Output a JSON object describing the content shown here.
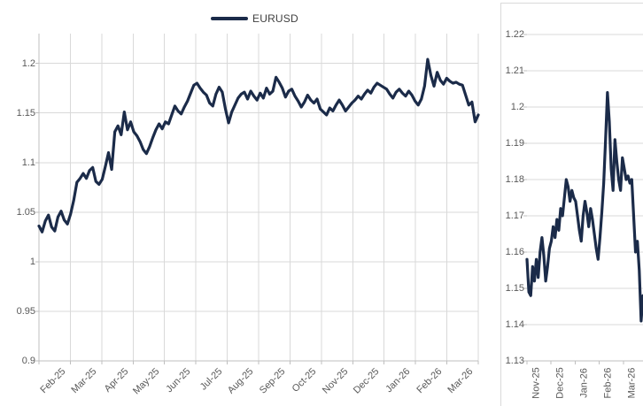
{
  "legend": {
    "label": "EURUSD"
  },
  "colors": {
    "line": "#1b2b49",
    "gridline": "#d9d9d9",
    "axis": "#bfbfbf",
    "tick_label": "#595959",
    "legend_text": "#3f3f3f",
    "frame_border": "#d9d9d9",
    "background": "#ffffff"
  },
  "chart_data": [
    {
      "name": "eurusd-full-history",
      "type": "line",
      "title": "",
      "legend_entries": [
        "EURUSD"
      ],
      "legend_position": "top",
      "grid": "horizontal-and-vertical",
      "x_tick_labels": [
        "Feb-25",
        "Mar-25",
        "Apr-25",
        "May-25",
        "Jun-25",
        "Jul-25",
        "Aug-25",
        "Sep-25",
        "Oct-25",
        "Nov-25",
        "Dec-25",
        "Jan-26",
        "Feb-26",
        "Mar-26"
      ],
      "y_tick_labels": [
        "0.9",
        "0.95",
        "1",
        "1.05",
        "1.1",
        "1.15",
        "1.2"
      ],
      "y_tick_values": [
        0.9,
        0.95,
        1.0,
        1.05,
        1.1,
        1.15,
        1.2
      ],
      "ylim": [
        0.9,
        1.23
      ],
      "series": [
        {
          "name": "EURUSD",
          "values": [
            1.036,
            1.03,
            1.041,
            1.047,
            1.035,
            1.031,
            1.045,
            1.051,
            1.042,
            1.038,
            1.048,
            1.062,
            1.08,
            1.084,
            1.089,
            1.084,
            1.092,
            1.095,
            1.081,
            1.078,
            1.083,
            1.096,
            1.11,
            1.093,
            1.131,
            1.137,
            1.128,
            1.151,
            1.133,
            1.141,
            1.131,
            1.127,
            1.121,
            1.113,
            1.109,
            1.116,
            1.125,
            1.133,
            1.139,
            1.134,
            1.141,
            1.139,
            1.148,
            1.157,
            1.152,
            1.149,
            1.156,
            1.162,
            1.17,
            1.178,
            1.18,
            1.175,
            1.171,
            1.168,
            1.16,
            1.157,
            1.169,
            1.176,
            1.171,
            1.154,
            1.14,
            1.151,
            1.158,
            1.165,
            1.169,
            1.171,
            1.164,
            1.172,
            1.167,
            1.163,
            1.17,
            1.165,
            1.175,
            1.169,
            1.172,
            1.186,
            1.181,
            1.175,
            1.166,
            1.172,
            1.174,
            1.167,
            1.162,
            1.156,
            1.161,
            1.168,
            1.163,
            1.16,
            1.164,
            1.154,
            1.151,
            1.148,
            1.155,
            1.152,
            1.158,
            1.163,
            1.158,
            1.152,
            1.156,
            1.16,
            1.163,
            1.167,
            1.164,
            1.169,
            1.173,
            1.17,
            1.176,
            1.18,
            1.178,
            1.176,
            1.174,
            1.169,
            1.165,
            1.171,
            1.174,
            1.17,
            1.167,
            1.172,
            1.168,
            1.162,
            1.158,
            1.164,
            1.177,
            1.204,
            1.188,
            1.177,
            1.191,
            1.183,
            1.179,
            1.185,
            1.182,
            1.18,
            1.181,
            1.179,
            1.178,
            1.168,
            1.158,
            1.161,
            1.141,
            1.148
          ]
        }
      ]
    },
    {
      "name": "eurusd-recent-zoom",
      "type": "line",
      "title": "",
      "legend_entries": [
        "EURUSD"
      ],
      "grid": "horizontal",
      "x_tick_labels": [
        "Nov-25",
        "Dec-25",
        "Jan-26",
        "Feb-26",
        "Mar-26"
      ],
      "y_tick_labels": [
        "1.13",
        "1.14",
        "1.15",
        "1.16",
        "1.17",
        "1.18",
        "1.19",
        "1.2",
        "1.21",
        "1.22"
      ],
      "y_tick_values": [
        1.13,
        1.14,
        1.15,
        1.16,
        1.17,
        1.18,
        1.19,
        1.2,
        1.21,
        1.22
      ],
      "ylim": [
        1.13,
        1.2295
      ],
      "series": [
        {
          "name": "EURUSD",
          "values": [
            1.158,
            1.149,
            1.148,
            1.156,
            1.152,
            1.158,
            1.153,
            1.16,
            1.164,
            1.159,
            1.152,
            1.156,
            1.161,
            1.163,
            1.167,
            1.164,
            1.169,
            1.166,
            1.172,
            1.17,
            1.175,
            1.18,
            1.178,
            1.174,
            1.177,
            1.175,
            1.174,
            1.17,
            1.166,
            1.163,
            1.17,
            1.174,
            1.171,
            1.167,
            1.172,
            1.169,
            1.165,
            1.161,
            1.158,
            1.164,
            1.171,
            1.179,
            1.191,
            1.204,
            1.196,
            1.183,
            1.177,
            1.191,
            1.185,
            1.18,
            1.177,
            1.186,
            1.183,
            1.18,
            1.181,
            1.179,
            1.18,
            1.17,
            1.16,
            1.163,
            1.155,
            1.141,
            1.148
          ]
        }
      ]
    }
  ]
}
